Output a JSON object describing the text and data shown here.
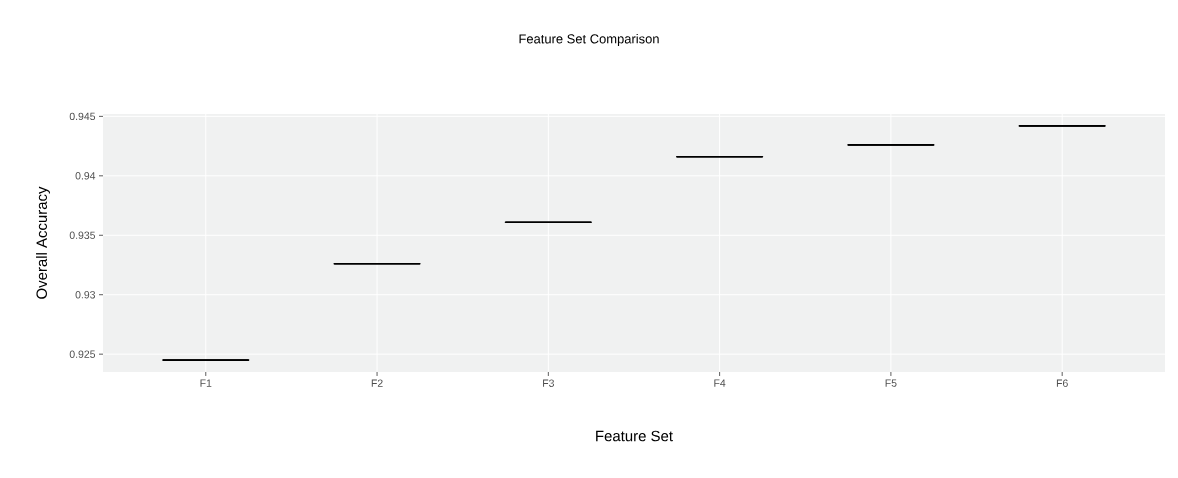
{
  "chart_data": {
    "type": "box",
    "title": "Feature Set Comparison",
    "xlabel": "Feature Set",
    "ylabel": "Overall Accuracy",
    "categories": [
      "F1",
      "F2",
      "F3",
      "F4",
      "F5",
      "F6"
    ],
    "boxes": [
      {
        "low": 0.9245,
        "q1": 0.9245,
        "median": 0.9245,
        "q3": 0.9245,
        "high": 0.9245
      },
      {
        "low": 0.9326,
        "q1": 0.9326,
        "median": 0.9326,
        "q3": 0.9326,
        "high": 0.9326
      },
      {
        "low": 0.9361,
        "q1": 0.9361,
        "median": 0.9361,
        "q3": 0.9361,
        "high": 0.9361
      },
      {
        "low": 0.9416,
        "q1": 0.9416,
        "median": 0.9416,
        "q3": 0.9416,
        "high": 0.9416
      },
      {
        "low": 0.9426,
        "q1": 0.9426,
        "median": 0.9426,
        "q3": 0.9426,
        "high": 0.9426
      },
      {
        "low": 0.9442,
        "q1": 0.9442,
        "median": 0.9442,
        "q3": 0.9442,
        "high": 0.9442
      }
    ],
    "color": "#000000",
    "ylim": [
      0.9235,
      0.9452
    ],
    "yticks": [
      0.925,
      0.93,
      0.935,
      0.94,
      0.945
    ],
    "grid": true
  }
}
